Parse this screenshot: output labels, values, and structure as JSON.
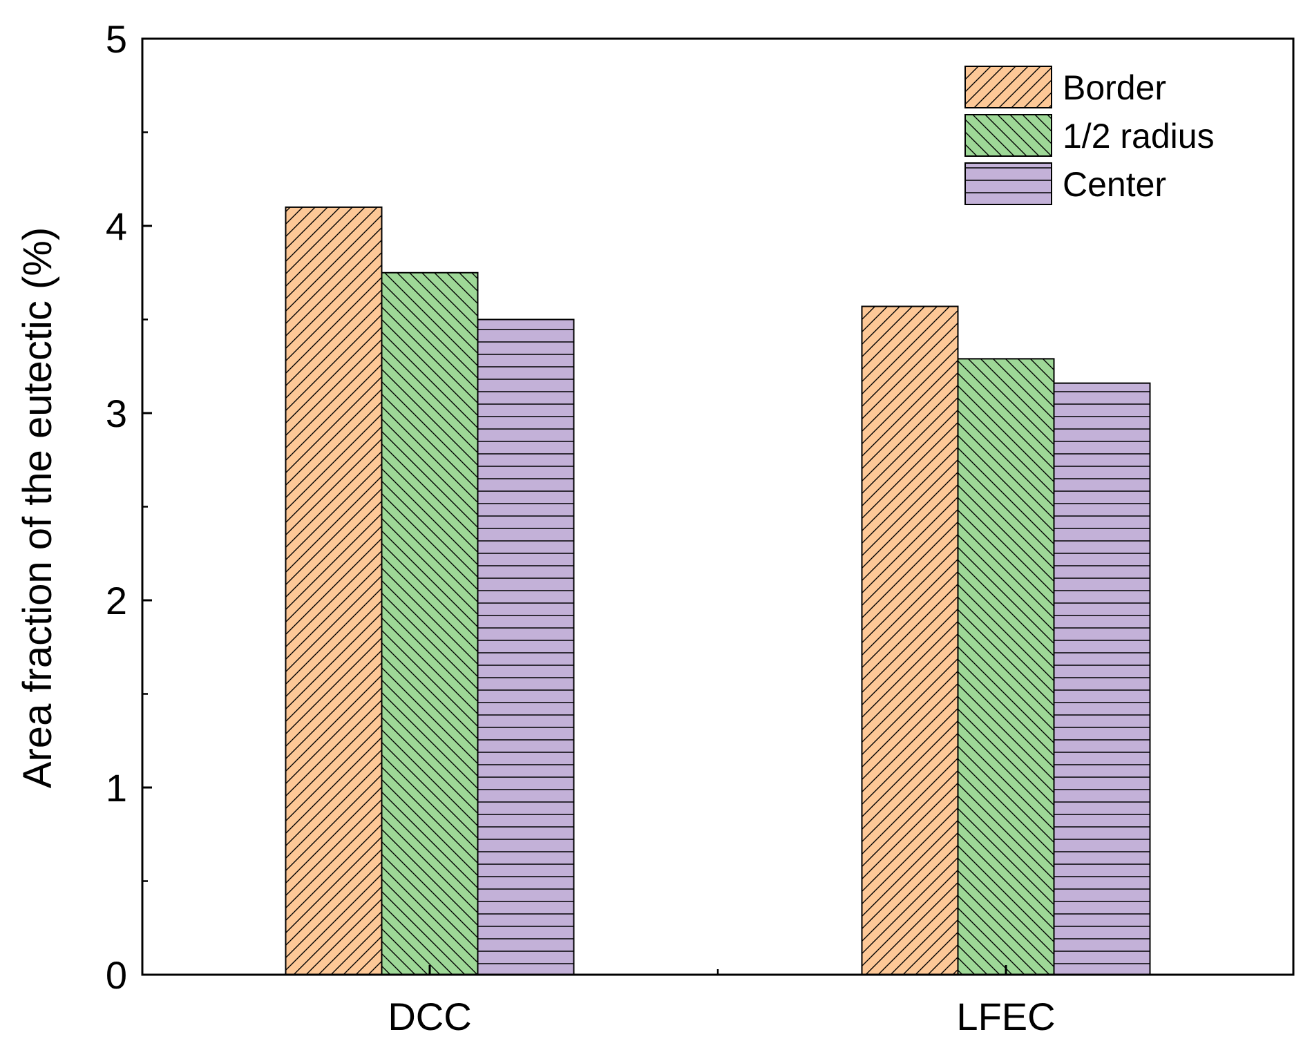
{
  "chart_data": {
    "type": "bar",
    "title": "",
    "xlabel": "",
    "ylabel": "Area fraction of the eutectic (%)",
    "categories": [
      "DCC",
      "LFEC"
    ],
    "ylim": [
      0,
      5
    ],
    "yticks": [
      0,
      1,
      2,
      3,
      4,
      5
    ],
    "yticks_minor": [
      0.5,
      1.5,
      2.5,
      3.5,
      4.5
    ],
    "grid": false,
    "legend_position": "top-right",
    "series": [
      {
        "name": "Border",
        "values": [
          4.1,
          3.57
        ],
        "color": "#FDC897",
        "pattern": "diagonal-up"
      },
      {
        "name": "1/2 radius",
        "values": [
          3.75,
          3.29
        ],
        "color": "#9ED897",
        "pattern": "diagonal-down"
      },
      {
        "name": "Center",
        "values": [
          3.5,
          3.16
        ],
        "color": "#C3B1D8",
        "pattern": "horizontal"
      }
    ]
  }
}
